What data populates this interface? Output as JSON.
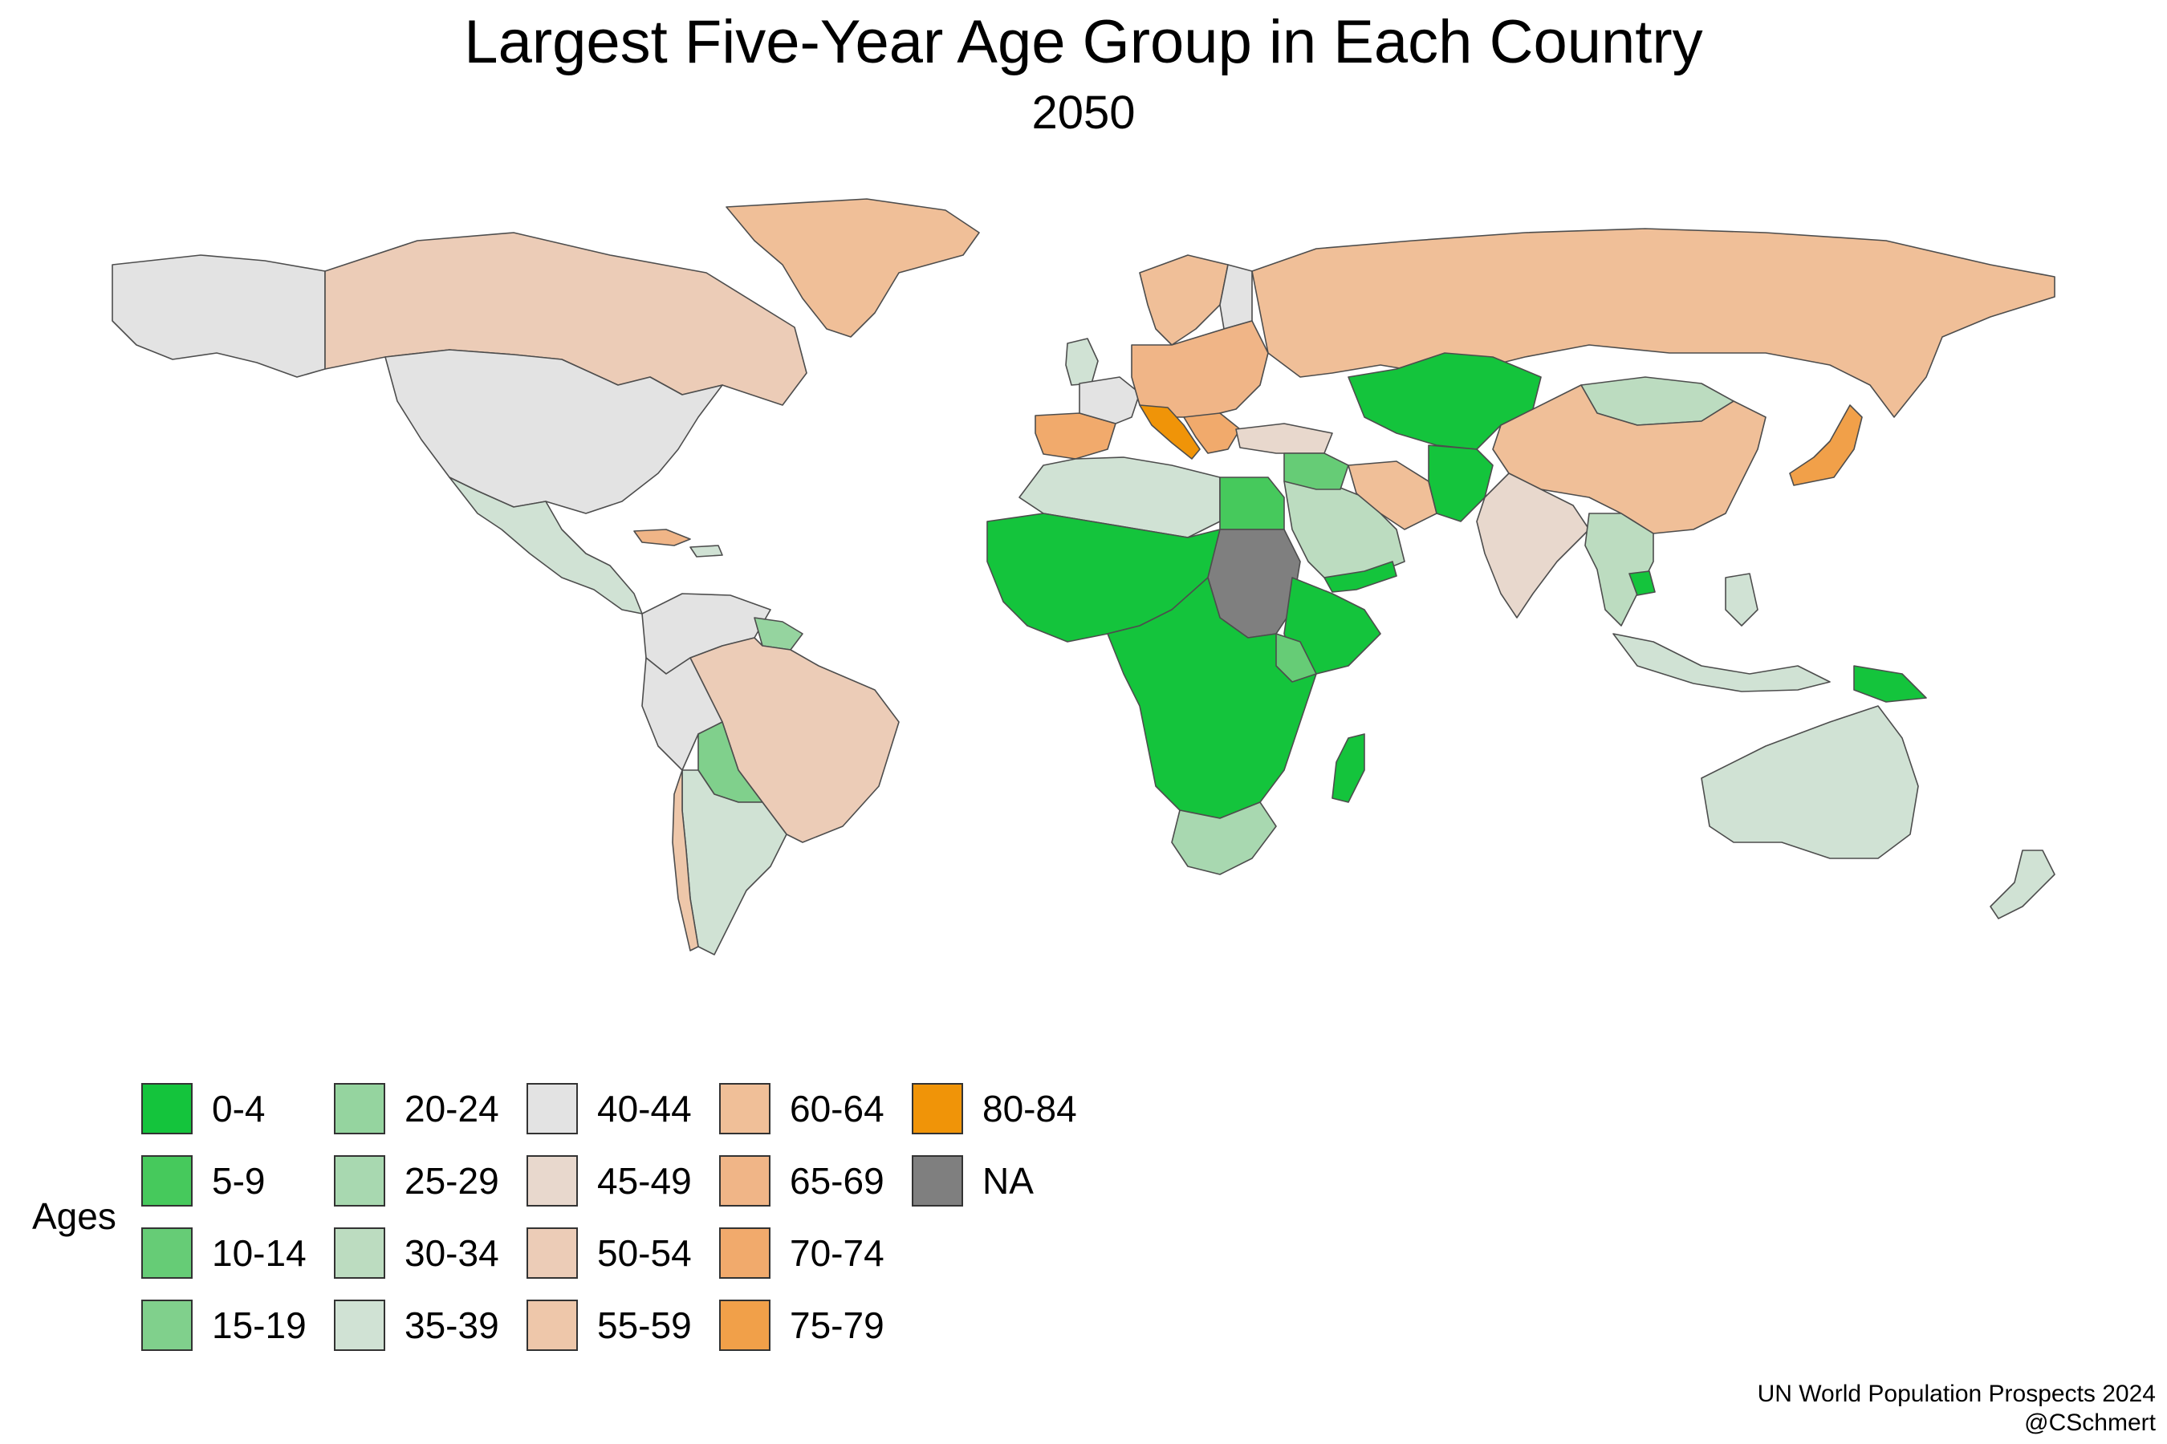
{
  "title": "Largest Five-Year Age Group in Each Country",
  "subtitle": "2050",
  "legend": {
    "title": "Ages",
    "items": [
      {
        "label": "0-4",
        "color": "#14c43c"
      },
      {
        "label": "5-9",
        "color": "#46c95c"
      },
      {
        "label": "10-14",
        "color": "#66cc76"
      },
      {
        "label": "15-19",
        "color": "#80d08c"
      },
      {
        "label": "20-24",
        "color": "#95d49f"
      },
      {
        "label": "25-29",
        "color": "#a8d8b0"
      },
      {
        "label": "30-34",
        "color": "#bcdcc0"
      },
      {
        "label": "35-39",
        "color": "#d0e2d4"
      },
      {
        "label": "40-44",
        "color": "#e3e3e3"
      },
      {
        "label": "45-49",
        "color": "#e8d8cd"
      },
      {
        "label": "50-54",
        "color": "#ecccb7"
      },
      {
        "label": "55-59",
        "color": "#eec7aa"
      },
      {
        "label": "60-64",
        "color": "#f0bf98"
      },
      {
        "label": "65-69",
        "color": "#f0b587"
      },
      {
        "label": "70-74",
        "color": "#f1aa6c"
      },
      {
        "label": "75-79",
        "color": "#f1a049"
      },
      {
        "label": "80-84",
        "color": "#f09408"
      },
      {
        "label": "NA",
        "color": "#7f7f7f"
      }
    ]
  },
  "source": {
    "line1": "UN World Population Prospects 2024",
    "line2": "@CSchmert"
  }
}
